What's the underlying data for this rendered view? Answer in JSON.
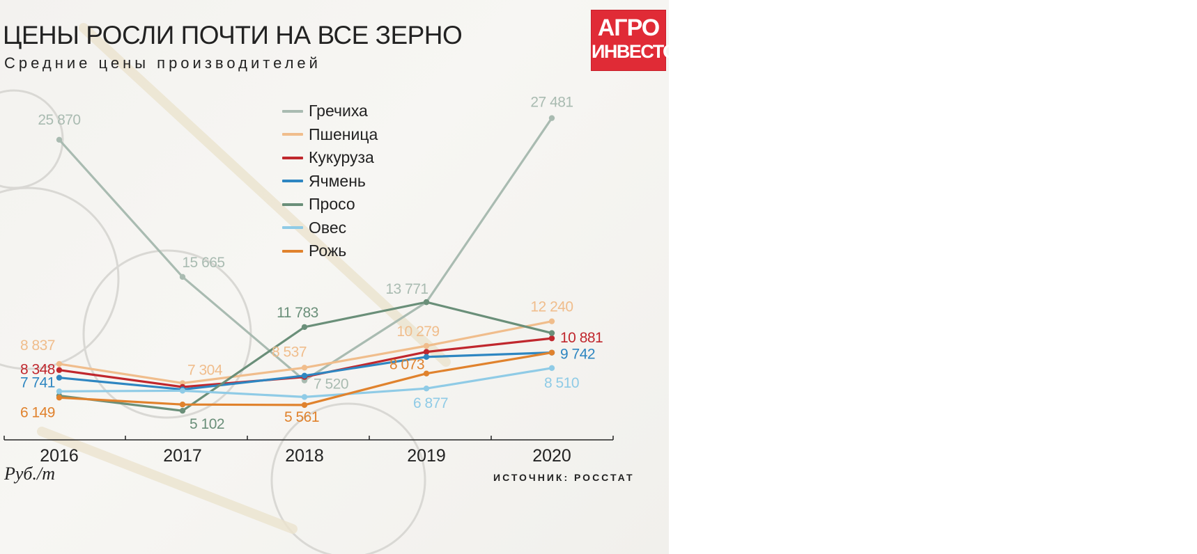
{
  "title": "ЦЕНЫ РОСЛИ ПОЧТИ НА ВСЕ ЗЕРНО",
  "subtitle": "Средние цены производителей",
  "logo": {
    "line1": "АГРО",
    "line2": "ИНВЕСТОР",
    "color": "#e02b36"
  },
  "unit_label": "Руб./т",
  "source": "ИСТОЧНИК: РОССТАТ",
  "chart_data": {
    "type": "line",
    "title": "ЦЕНЫ РОСЛИ ПОЧТИ НА ВСЕ ЗЕРНО",
    "subtitle": "Средние цены производителей",
    "ylabel": "Руб./т",
    "x": [
      "2016",
      "2017",
      "2018",
      "2019",
      "2020"
    ],
    "ylim": [
      4000,
      28500
    ],
    "grid": false,
    "legend_position": "top-center",
    "series": [
      {
        "name": "Гречиха",
        "color": "#a9bbb1",
        "values": [
          25870,
          15665,
          7520,
          13771,
          27481
        ],
        "labels": [
          "25 870",
          "15 665",
          "7 520",
          "13 771",
          "27 481"
        ],
        "show": [
          true,
          true,
          true,
          true,
          true
        ]
      },
      {
        "name": "Пшеница",
        "color": "#f0bd8c",
        "values": [
          8837,
          7304,
          8537,
          10279,
          12240
        ],
        "labels": [
          "8 837",
          "7 304",
          "8 537",
          "10 279",
          "12 240"
        ],
        "show": [
          true,
          true,
          true,
          true,
          true
        ]
      },
      {
        "name": "Кукуруза",
        "color": "#c0272d",
        "values": [
          8348,
          7000,
          7800,
          9800,
          10881
        ],
        "labels": [
          "8 348",
          "",
          "",
          "",
          "10 881"
        ],
        "show": [
          true,
          false,
          false,
          false,
          true
        ]
      },
      {
        "name": "Ячмень",
        "color": "#2e86c1",
        "values": [
          7741,
          6800,
          7900,
          9400,
          9742
        ],
        "labels": [
          "7 741",
          "",
          "",
          "",
          "9 742"
        ],
        "show": [
          true,
          false,
          false,
          false,
          true
        ]
      },
      {
        "name": "Просо",
        "color": "#6a8f79",
        "values": [
          6300,
          5102,
          11783,
          13771,
          11300
        ],
        "labels": [
          "",
          "5 102",
          "11 783",
          "",
          ""
        ],
        "show": [
          false,
          true,
          true,
          false,
          false
        ]
      },
      {
        "name": "Овес",
        "color": "#8fcbe6",
        "values": [
          6650,
          6700,
          6200,
          6877,
          8510
        ],
        "labels": [
          "",
          "",
          "",
          "6 877",
          "8 510"
        ],
        "show": [
          false,
          false,
          false,
          true,
          true
        ]
      },
      {
        "name": "Рожь",
        "color": "#e0822d",
        "values": [
          6149,
          5600,
          5561,
          8073,
          9742
        ],
        "labels": [
          "6 149",
          "",
          "5 561",
          "8 073",
          ""
        ],
        "show": [
          true,
          false,
          true,
          true,
          false
        ]
      }
    ]
  }
}
